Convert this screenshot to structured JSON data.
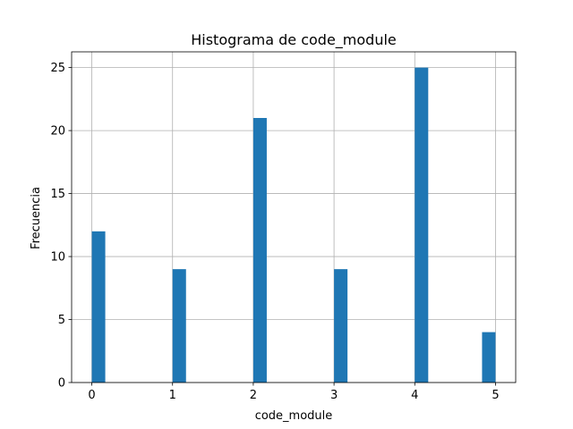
{
  "chart_data": {
    "type": "bar",
    "title": "Histograma de code_module",
    "xlabel": "code_module",
    "ylabel": "Frecuencia",
    "bins": [
      {
        "start": 0.0,
        "end": 0.1667,
        "count": 12
      },
      {
        "start": 1.0,
        "end": 1.1667,
        "count": 9
      },
      {
        "start": 2.0,
        "end": 2.1667,
        "count": 21
      },
      {
        "start": 3.0,
        "end": 3.1667,
        "count": 9
      },
      {
        "start": 4.0,
        "end": 4.1667,
        "count": 25
      },
      {
        "start": 4.8333,
        "end": 5.0,
        "count": 4
      }
    ],
    "xlim": [
      -0.25,
      5.25
    ],
    "ylim": [
      0,
      26.25
    ],
    "xticks": [
      "0",
      "1",
      "2",
      "3",
      "4",
      "5"
    ],
    "yticks": [
      "0",
      "5",
      "10",
      "15",
      "20",
      "25"
    ],
    "grid": true,
    "bar_color": "#1f77b4"
  }
}
